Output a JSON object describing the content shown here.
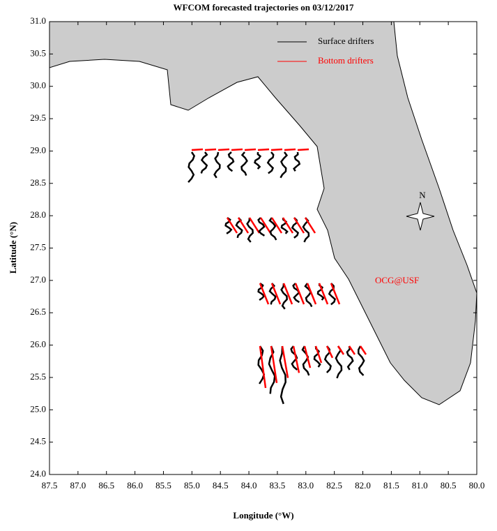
{
  "chart_data": {
    "type": "map",
    "title": "WFCOM forecasted trajectories on 03/12/2017",
    "xlabel": "Longitude (°W)",
    "ylabel": "Latitude (°N)",
    "xlim": [
      87.5,
      80.0
    ],
    "xticks": [
      87.5,
      {
        "value": 87.0,
        "label": "87.0"
      },
      86.5,
      {
        "value": 86.0,
        "label": "86.0"
      },
      85.5,
      {
        "value": 85.0,
        "label": "85.0"
      },
      84.5,
      {
        "value": 84.0,
        "label": "84.0"
      },
      83.5,
      {
        "value": 83.0,
        "label": "83.0"
      },
      82.5,
      {
        "value": 82.0,
        "label": "82.0"
      },
      81.5,
      {
        "value": 81.0,
        "label": "81.0"
      },
      80.5,
      {
        "value": 80.0,
        "label": "80.0"
      }
    ],
    "ylim": [
      24.0,
      31.0
    ],
    "yticks": [
      {
        "value": 24.0,
        "label": "24.0"
      },
      24.5,
      {
        "value": 25.0,
        "label": "25.0"
      },
      25.5,
      {
        "value": 26.0,
        "label": "26.0"
      },
      26.5,
      {
        "value": 27.0,
        "label": "27.0"
      },
      27.5,
      {
        "value": 28.0,
        "label": "28.0"
      },
      28.5,
      {
        "value": 29.0,
        "label": "29.0"
      },
      29.5,
      {
        "value": 30.0,
        "label": "30.0"
      },
      30.5,
      {
        "value": 31.0,
        "label": "31.0"
      }
    ],
    "series": [
      {
        "name": "Surface drifters",
        "color": "#000000"
      },
      {
        "name": "Bottom drifters",
        "color": "#ff0000"
      }
    ],
    "annotation": "OCG@USF",
    "compass_label": "N"
  }
}
